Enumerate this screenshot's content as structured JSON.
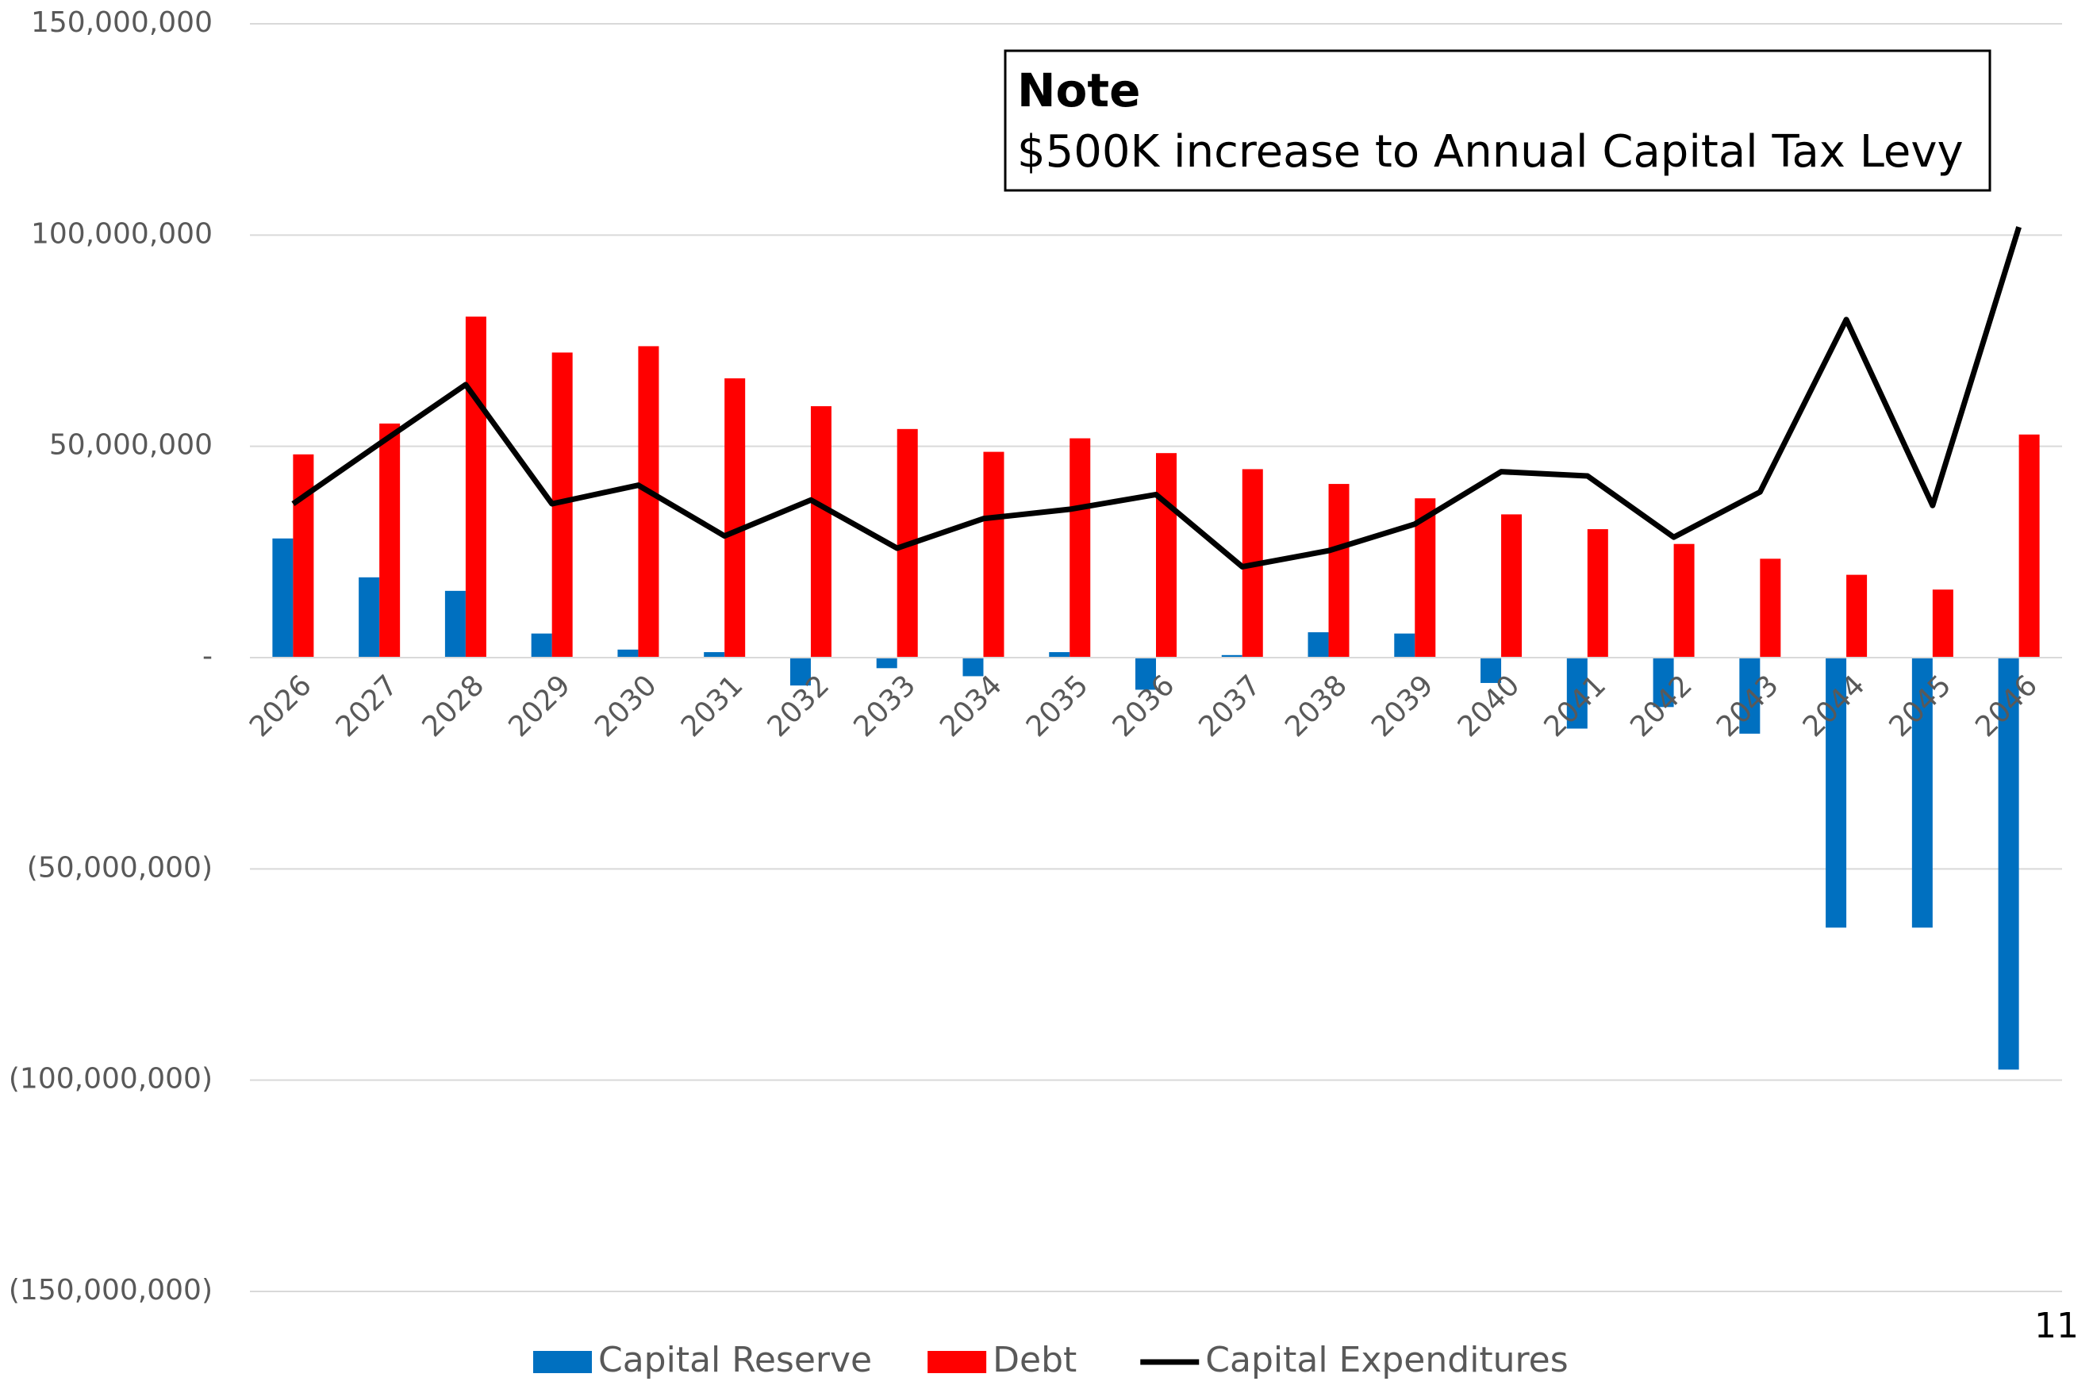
{
  "chart_data": {
    "type": "bar",
    "categories": [
      "2026",
      "2027",
      "2028",
      "2029",
      "2030",
      "2031",
      "2032",
      "2033",
      "2034",
      "2035",
      "2036",
      "2037",
      "2038",
      "2039",
      "2040",
      "2041",
      "2042",
      "2043",
      "2044",
      "2045",
      "2046"
    ],
    "series": [
      {
        "name": "Capital Reserve",
        "type": "bar",
        "color": "#0070c0",
        "values": [
          28200000,
          19000000,
          15800000,
          5700000,
          1900000,
          1300000,
          -6600000,
          -2500000,
          -4400000,
          1300000,
          -7600000,
          600000,
          6000000,
          5700000,
          -6000000,
          -16800000,
          -11700000,
          -18000000,
          -63900000,
          -63900000,
          -97500000
        ]
      },
      {
        "name": "Debt",
        "type": "bar",
        "color": "#ff0000",
        "values": [
          48100000,
          55400000,
          80700000,
          72200000,
          73700000,
          66100000,
          59500000,
          54100000,
          48700000,
          51900000,
          48400000,
          44600000,
          41100000,
          37700000,
          33900000,
          30400000,
          26900000,
          23400000,
          19600000,
          16100000,
          52800000
        ]
      },
      {
        "name": "Capital Expenditures",
        "type": "line",
        "color": "#000000",
        "values": [
          36400000,
          50600000,
          64600000,
          36400000,
          40800000,
          28800000,
          37300000,
          25900000,
          32900000,
          35100000,
          38600000,
          21500000,
          25300000,
          31600000,
          44000000,
          43000000,
          28500000,
          39200000,
          80000000,
          36000000,
          101900000
        ]
      }
    ],
    "ylim": [
      -150000000,
      150000000
    ],
    "yticks": [
      {
        "value": 150000000,
        "label": "150,000,000"
      },
      {
        "value": 100000000,
        "label": "100,000,000"
      },
      {
        "value": 50000000,
        "label": "50,000,000"
      },
      {
        "value": 0,
        "label": "-"
      },
      {
        "value": -50000000,
        "label": "(50,000,000)"
      },
      {
        "value": -100000000,
        "label": "(100,000,000)"
      },
      {
        "value": -150000000,
        "label": "(150,000,000)"
      }
    ],
    "grid": true,
    "legend": "bottom",
    "annotation": {
      "title": "Note",
      "text": "$500K increase to Annual Capital Tax Levy"
    },
    "page_number": "11"
  }
}
